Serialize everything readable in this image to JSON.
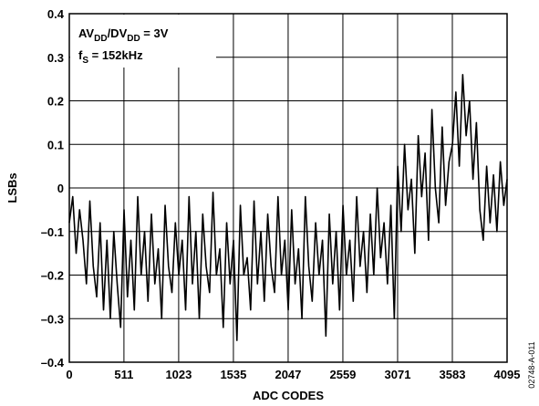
{
  "chart_data": {
    "type": "line",
    "xlabel": "ADC CODES",
    "ylabel": "LSBs",
    "annotation": [
      [
        "AV",
        "DD",
        "/DV",
        "DD",
        " = 3V"
      ],
      [
        "f",
        "S",
        " = 152kHz"
      ]
    ],
    "figure_id": "02748-A-011",
    "grid": true,
    "xlim": [
      0,
      4095
    ],
    "ylim": [
      -0.4,
      0.4
    ],
    "xticks": [
      0,
      511,
      1023,
      1535,
      2047,
      2559,
      3071,
      3583,
      4095
    ],
    "yticks": [
      {
        "value": -0.4,
        "label": "–0.4"
      },
      {
        "value": -0.3,
        "label": "–0.3"
      },
      {
        "value": -0.2,
        "label": "–0.2"
      },
      {
        "value": -0.1,
        "label": "–0.1"
      },
      0,
      0.1,
      0.2,
      0.3,
      0.4
    ],
    "x": [
      0,
      32,
      64,
      96,
      128,
      160,
      192,
      224,
      256,
      288,
      320,
      352,
      384,
      416,
      448,
      480,
      512,
      544,
      576,
      608,
      640,
      672,
      704,
      736,
      768,
      800,
      832,
      864,
      896,
      928,
      960,
      992,
      1024,
      1056,
      1088,
      1120,
      1152,
      1184,
      1216,
      1248,
      1280,
      1312,
      1344,
      1376,
      1408,
      1440,
      1472,
      1504,
      1536,
      1568,
      1600,
      1632,
      1664,
      1696,
      1728,
      1760,
      1792,
      1824,
      1856,
      1888,
      1920,
      1952,
      1984,
      2016,
      2048,
      2080,
      2112,
      2144,
      2176,
      2208,
      2240,
      2272,
      2304,
      2336,
      2368,
      2400,
      2432,
      2464,
      2496,
      2528,
      2560,
      2592,
      2624,
      2656,
      2688,
      2720,
      2752,
      2784,
      2816,
      2848,
      2880,
      2912,
      2944,
      2976,
      3008,
      3040,
      3072,
      3104,
      3136,
      3168,
      3200,
      3232,
      3264,
      3296,
      3328,
      3360,
      3392,
      3424,
      3456,
      3488,
      3520,
      3552,
      3584,
      3616,
      3648,
      3680,
      3712,
      3744,
      3776,
      3808,
      3840,
      3872,
      3904,
      3936,
      3968,
      4000,
      4032,
      4064,
      4095
    ],
    "series": [
      {
        "color": "#000000",
        "values": [
          -0.08,
          -0.02,
          -0.15,
          -0.05,
          -0.12,
          -0.22,
          -0.03,
          -0.18,
          -0.25,
          -0.08,
          -0.28,
          -0.12,
          -0.3,
          -0.1,
          -0.22,
          -0.32,
          -0.05,
          -0.25,
          -0.12,
          -0.28,
          -0.02,
          -0.2,
          -0.1,
          -0.26,
          -0.06,
          -0.22,
          -0.14,
          -0.3,
          -0.04,
          -0.18,
          -0.24,
          -0.08,
          -0.2,
          -0.12,
          -0.28,
          -0.02,
          -0.22,
          -0.1,
          -0.3,
          -0.06,
          -0.18,
          -0.24,
          -0.01,
          -0.2,
          -0.14,
          -0.32,
          -0.08,
          -0.22,
          -0.12,
          -0.35,
          -0.04,
          -0.2,
          -0.16,
          -0.28,
          -0.03,
          -0.22,
          -0.1,
          -0.26,
          -0.06,
          -0.18,
          -0.24,
          -0.02,
          -0.2,
          -0.12,
          -0.28,
          -0.05,
          -0.22,
          -0.14,
          -0.3,
          -0.02,
          -0.18,
          -0.26,
          -0.08,
          -0.2,
          -0.12,
          -0.34,
          -0.06,
          -0.22,
          -0.1,
          -0.28,
          -0.04,
          -0.2,
          -0.12,
          -0.26,
          -0.02,
          -0.18,
          -0.1,
          -0.24,
          -0.06,
          -0.2,
          0.0,
          -0.16,
          -0.08,
          -0.22,
          -0.04,
          -0.3,
          0.05,
          -0.1,
          0.1,
          -0.05,
          0.02,
          -0.15,
          0.12,
          -0.02,
          0.08,
          -0.12,
          0.18,
          0.0,
          -0.08,
          0.14,
          -0.04,
          0.06,
          0.1,
          0.22,
          0.05,
          0.26,
          0.12,
          0.2,
          0.02,
          0.15,
          -0.05,
          -0.12,
          0.05,
          -0.08,
          0.03,
          -0.1,
          0.06,
          -0.04,
          0.02
        ]
      }
    ]
  }
}
